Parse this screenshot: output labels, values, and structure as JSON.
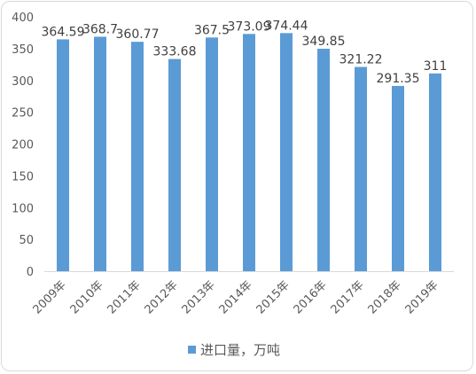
{
  "chart_data": {
    "type": "bar",
    "categories": [
      "2009年",
      "2010年",
      "2011年",
      "2012年",
      "2013年",
      "2014年",
      "2015年",
      "2016年",
      "2017年",
      "2018年",
      "2019年"
    ],
    "series": [
      {
        "name": "进口量，万吨",
        "values": [
          364.59,
          368.7,
          360.77,
          333.68,
          367.5,
          373.09,
          374.44,
          349.85,
          321.22,
          291.35,
          311
        ],
        "labels": [
          "364.59",
          "368.7",
          "360.77",
          "333.68",
          "367.5",
          "373.09",
          "374.44",
          "349.85",
          "321.22",
          "291.35",
          "311"
        ]
      }
    ],
    "ylim": [
      0,
      400
    ],
    "yticks": [
      "0",
      "50",
      "100",
      "150",
      "200",
      "250",
      "300",
      "350",
      "400"
    ],
    "grid": false,
    "legend": "bottom",
    "bar_color": "#5b9bd5"
  }
}
